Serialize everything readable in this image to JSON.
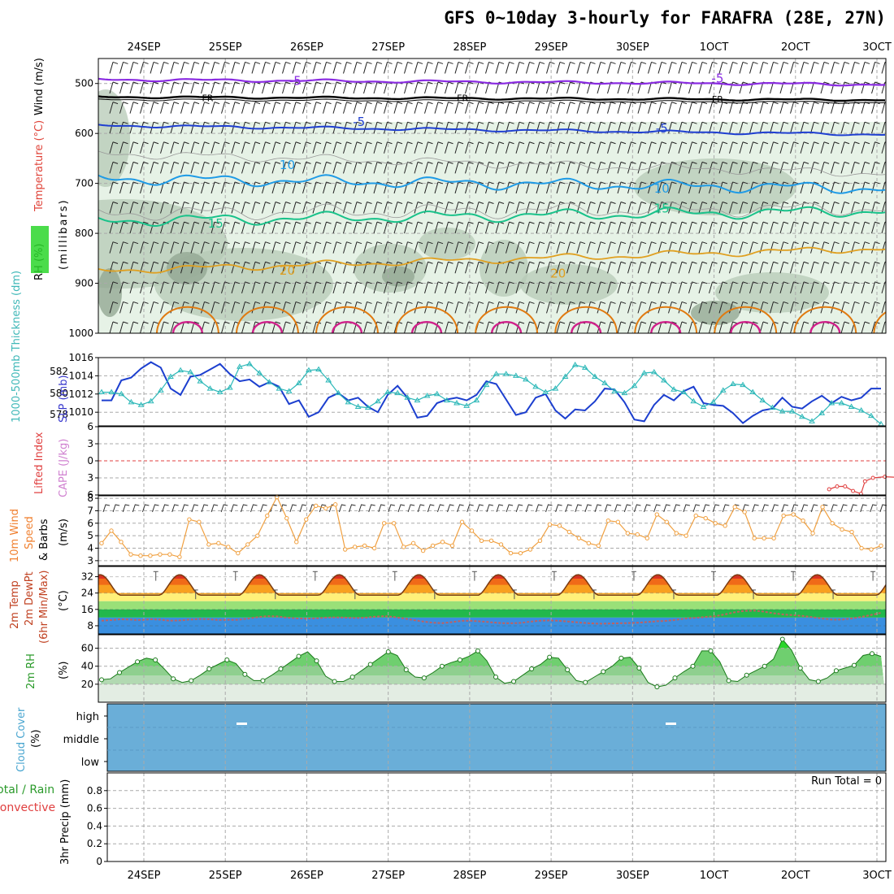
{
  "title": "GFS 0~10day 3-hourly for FARAFRA (28E, 27N)",
  "colors": {
    "purple": "#8a2be2",
    "black": "#000000",
    "blue": "#1f3fd1",
    "cyan": "#1f9be6",
    "teal": "#19c28a",
    "orange": "#e0a020",
    "deeporange": "#e07a10",
    "magenta": "#d0208a",
    "thick_blue": "#1c3fcf",
    "slp_cyan": "#2cb8b8",
    "wind_orange": "#f0a040",
    "rh_green": "#2bd62b",
    "cloud_blue": "#6aaed8",
    "lifted_red": "#e04040",
    "cape_pink": "#d080d0"
  },
  "date_labels": [
    "24SEP",
    "25SEP",
    "26SEP",
    "27SEP",
    "28SEP",
    "29SEP",
    "30SEP",
    "1OCT",
    "2OCT",
    "3OCT"
  ],
  "chart_data": [
    {
      "name": "upper-air",
      "type": "line",
      "title": "",
      "ylabel_parts": [
        "RH (%)",
        "Temperature (°C)",
        "Wind (m/s)",
        "(millibars)"
      ],
      "yticks": [
        500,
        600,
        700,
        800,
        900,
        1000
      ],
      "ylim": [
        450,
        1000
      ],
      "contour_labels": [
        {
          "text": "-5",
          "day": 1.9,
          "p": 495,
          "color": "purple"
        },
        {
          "text": "-5",
          "day": 7.2,
          "p": 490,
          "color": "purple"
        },
        {
          "text": "FR",
          "day": 0.8,
          "p": 527,
          "color": "black"
        },
        {
          "text": "FR",
          "day": 4.0,
          "p": 527,
          "color": "black"
        },
        {
          "text": "FR",
          "day": 7.2,
          "p": 530,
          "color": "black"
        },
        {
          "text": "-5",
          "day": 2.7,
          "p": 577,
          "color": "blue"
        },
        {
          "text": "-5",
          "day": 6.5,
          "p": 590,
          "color": "blue"
        },
        {
          "text": "10",
          "day": 1.8,
          "p": 663,
          "color": "cyan"
        },
        {
          "text": "10",
          "day": 6.5,
          "p": 710,
          "color": "cyan"
        },
        {
          "text": "15",
          "day": 0.9,
          "p": 780,
          "color": "teal"
        },
        {
          "text": "15",
          "day": 6.5,
          "p": 750,
          "color": "teal"
        },
        {
          "text": "20",
          "day": 1.8,
          "p": 875,
          "color": "orange"
        },
        {
          "text": "20",
          "day": 5.2,
          "p": 880,
          "color": "orange"
        }
      ]
    },
    {
      "name": "thickness-slp",
      "type": "line",
      "ylabel_left": "1000-500mb Thickness (dm)",
      "ylabel_right": "SLP (mb)",
      "yticks_left": [
        578,
        580,
        582
      ],
      "yticks_right": [
        1010,
        1012,
        1014,
        1016
      ],
      "ylim_right": [
        1008.5,
        1016
      ],
      "series": [
        {
          "name": "SLP",
          "color": "thick_blue",
          "values": [
            1011.3,
            1011.3,
            1013.5,
            1013.8,
            1014.8,
            1015.5,
            1014.9,
            1012.6,
            1011.9,
            1013.9,
            1014.1,
            1014.7,
            1015.3,
            1014.2,
            1013.4,
            1013.6,
            1012.8,
            1013.3,
            1012.8,
            1010.9,
            1011.3,
            1009.5,
            1010.0,
            1011.6,
            1012.1,
            1011.3,
            1011.6,
            1010.6,
            1010.0,
            1011.9,
            1012.9,
            1011.6,
            1009.4,
            1009.6,
            1011.0,
            1011.4,
            1011.6,
            1011.3,
            1011.9,
            1013.4,
            1013.1,
            1011.4,
            1009.7,
            1010.0,
            1011.6,
            1012.0,
            1010.2,
            1009.3,
            1010.3,
            1010.2,
            1011.2,
            1012.6,
            1012.5,
            1011.1,
            1009.2,
            1009.0,
            1010.8,
            1011.9,
            1011.3,
            1012.3,
            1012.8,
            1011.0,
            1010.8,
            1010.7,
            1009.9,
            1008.8,
            1009.6,
            1010.2,
            1010.4,
            1011.6,
            1010.6,
            1010.4,
            1011.2,
            1011.8,
            1011.0,
            1011.7,
            1011.3,
            1011.6,
            1012.6,
            1012.6
          ]
        },
        {
          "name": "Thickness",
          "color": "slp_cyan",
          "values": [
            1012.2,
            1012.2,
            1012.0,
            1011.1,
            1010.8,
            1011.2,
            1012.4,
            1013.9,
            1014.6,
            1014.4,
            1013.4,
            1012.6,
            1012.2,
            1012.7,
            1015.0,
            1015.3,
            1014.3,
            1013.3,
            1012.6,
            1012.3,
            1013.2,
            1014.6,
            1014.7,
            1013.5,
            1012.1,
            1011.1,
            1010.6,
            1010.5,
            1011.2,
            1012.2,
            1012.1,
            1011.6,
            1011.3,
            1011.8,
            1012.0,
            1011.3,
            1011.0,
            1010.7,
            1011.3,
            1013.0,
            1014.2,
            1014.2,
            1014.0,
            1013.6,
            1012.8,
            1012.2,
            1012.6,
            1013.9,
            1015.2,
            1014.9,
            1013.9,
            1013.2,
            1012.3,
            1012.1,
            1012.9,
            1014.3,
            1014.4,
            1013.5,
            1012.5,
            1012.2,
            1011.2,
            1010.6,
            1011.1,
            1012.4,
            1013.1,
            1013.0,
            1012.2,
            1011.3,
            1010.5,
            1010.1,
            1010.1,
            1009.5,
            1009.0,
            1009.9,
            1011.0,
            1011.0,
            1010.6,
            1010.2,
            1009.6,
            1008.7
          ]
        }
      ]
    },
    {
      "name": "stability",
      "type": "line",
      "ylabel_parts": [
        "Lifted Index",
        "CAPE (J/kg)"
      ],
      "yticks": [
        -6,
        -3,
        0,
        3,
        6
      ],
      "ylim": [
        -6,
        6
      ],
      "series": [
        {
          "name": "Lifted Index",
          "color": "lifted_red",
          "points": [
            [
              8.6,
              5.0
            ],
            [
              8.7,
              4.5
            ],
            [
              8.8,
              4.5
            ],
            [
              8.9,
              5.3
            ],
            [
              9.0,
              5.8
            ],
            [
              9.05,
              3.6
            ],
            [
              9.15,
              3.0
            ],
            [
              9.3,
              2.8
            ],
            [
              9.45,
              2.9
            ],
            [
              9.55,
              3.1
            ],
            [
              9.65,
              3.5
            ],
            [
              9.8,
              5.6
            ],
            [
              9.9,
              5.7
            ],
            [
              10.0,
              5.0
            ]
          ]
        }
      ]
    },
    {
      "name": "surface-wind",
      "type": "line",
      "ylabel_parts": [
        "10m Wind",
        "Speed",
        "& Barbs",
        "(m/s)"
      ],
      "yticks": [
        3,
        4,
        5,
        6,
        7,
        8
      ],
      "ylim": [
        2.6,
        8.2
      ],
      "series": [
        {
          "name": "Wind speed",
          "color": "wind_orange",
          "values": [
            4.4,
            5.4,
            4.5,
            3.5,
            3.4,
            3.4,
            3.5,
            3.5,
            3.3,
            6.3,
            6.1,
            4.3,
            4.4,
            4.1,
            3.6,
            4.3,
            5.0,
            6.6,
            8.1,
            6.4,
            4.5,
            6.3,
            7.4,
            7.2,
            7.5,
            3.9,
            4.1,
            4.2,
            4.0,
            6.0,
            6.0,
            4.1,
            4.4,
            3.8,
            4.2,
            4.5,
            4.2,
            6.1,
            5.4,
            4.6,
            4.6,
            4.3,
            3.6,
            3.6,
            3.9,
            4.6,
            5.9,
            5.8,
            5.3,
            4.8,
            4.4,
            4.2,
            6.2,
            6.1,
            5.2,
            5.1,
            4.8,
            6.7,
            6.1,
            5.2,
            5.0,
            6.6,
            6.4,
            6.0,
            5.8,
            7.3,
            6.9,
            4.8,
            4.8,
            4.8,
            6.6,
            6.7,
            6.2,
            5.2,
            7.3,
            6.0,
            5.5,
            5.3,
            4.0,
            3.9,
            4.2
          ]
        }
      ]
    },
    {
      "name": "temperature",
      "type": "area",
      "ylabel_parts": [
        "2m Temp",
        "2m DewPt",
        "(6hr Min/Max)",
        "(°C)"
      ],
      "yticks": [
        8,
        16,
        24,
        32
      ],
      "ylim": [
        4,
        37
      ],
      "series": [
        {
          "name": "Temperature",
          "color": "#8b4010",
          "min": 23,
          "max": 33
        },
        {
          "name": "Dew point",
          "color": "#c06060",
          "values": [
            10.5,
            10.8,
            11.2,
            11.0,
            10.8,
            11.2,
            11.0,
            10.5,
            10.6,
            11.0,
            11.3,
            11.2,
            10.8,
            10.9,
            10.9,
            11.5,
            12.2,
            12.7,
            12.6,
            12.0,
            11.6,
            11.5,
            11.6,
            12.0,
            12.1,
            12.0,
            11.8,
            11.9,
            12.4,
            12.7,
            12.3,
            11.6,
            10.8,
            10.1,
            9.5,
            9.3,
            9.8,
            10.4,
            10.4,
            10.1,
            9.7,
            9.3,
            9.2,
            9.4,
            10.0,
            10.5,
            10.6,
            10.4,
            10.0,
            9.6,
            9.2,
            9.0,
            9.1,
            9.2,
            9.3,
            9.5,
            9.8,
            10.2,
            10.4,
            10.9,
            11.6,
            11.9,
            12.3,
            12.7,
            13.6,
            14.6,
            15.3,
            15.4,
            14.9,
            14.1,
            13.5,
            13.2,
            12.8,
            12.2,
            11.5,
            11.0,
            11.0,
            11.6,
            12.3,
            13.3,
            14.3
          ]
        }
      ]
    },
    {
      "name": "relative-humidity",
      "type": "area",
      "ylabel_parts": [
        "2m RH",
        "(%)"
      ],
      "yticks": [
        20,
        40,
        60
      ],
      "ylim": [
        0,
        75
      ],
      "series": [
        {
          "name": "RH",
          "color": "rh_green",
          "values": [
            25,
            26,
            33,
            39,
            45,
            49,
            47,
            37,
            26,
            22,
            24,
            30,
            37,
            42,
            47,
            43,
            31,
            24,
            24,
            30,
            37,
            44,
            51,
            56,
            46,
            29,
            23,
            23,
            28,
            35,
            42,
            49,
            56,
            52,
            36,
            28,
            27,
            33,
            40,
            44,
            47,
            51,
            57,
            46,
            28,
            21,
            23,
            30,
            37,
            42,
            50,
            49,
            36,
            24,
            22,
            28,
            34,
            40,
            49,
            50,
            38,
            22,
            17,
            19,
            27,
            34,
            40,
            57,
            57,
            45,
            24,
            23,
            30,
            35,
            40,
            48,
            70,
            58,
            38,
            25,
            23,
            27,
            35,
            38,
            41,
            52,
            54,
            51
          ]
        }
      ]
    },
    {
      "name": "cloud-cover",
      "type": "area",
      "ylabel_parts": [
        "Cloud Cover",
        "(%)"
      ],
      "yticks": [
        "high",
        "middle",
        "low"
      ]
    },
    {
      "name": "precipitation",
      "type": "bar",
      "ylabel_parts": [
        "Total / Rain",
        "Convective",
        "3hr Precip (mm)"
      ],
      "yticks": [
        0,
        0.2,
        0.4,
        0.6,
        0.8
      ],
      "ylim": [
        0,
        1.0
      ],
      "run_total_label": "Run Total = 0"
    }
  ]
}
